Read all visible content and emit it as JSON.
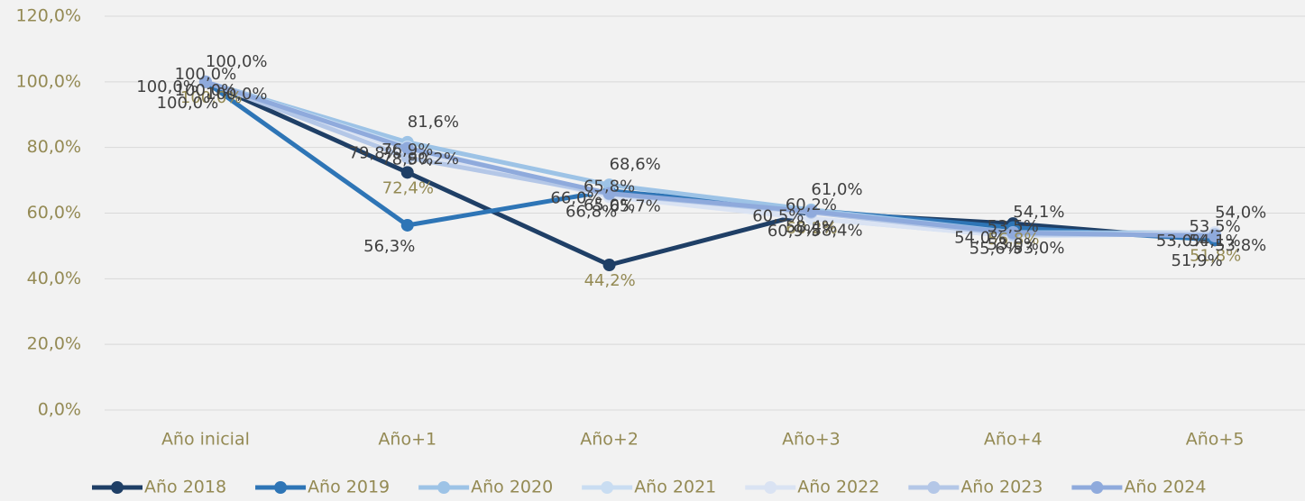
{
  "chart_data": {
    "type": "line",
    "categories": [
      "Año inicial",
      "Año+1",
      "Año+2",
      "Año+3",
      "Año+4",
      "Año+5"
    ],
    "series": [
      {
        "name": "Año 2018",
        "color": "#1f3f66",
        "values": [
          100,
          72.4,
          44.2,
          60.2,
          56.8,
          51.8
        ],
        "value_labels": [
          "100,0%",
          "72,4%",
          "44,2%",
          "60,2%",
          "56,8%",
          "51,8%"
        ]
      },
      {
        "name": "Año 2019",
        "color": "#2e75b6",
        "values": [
          100,
          56.3,
          66.8,
          60.9,
          55.6,
          51.9
        ],
        "value_labels": [
          "100,0%",
          "56,3%",
          "66,8%",
          "60,9%",
          "55,6%",
          "51,9%"
        ]
      },
      {
        "name": "Año 2020",
        "color": "#9dc3e6",
        "values": [
          100,
          81.6,
          68.6,
          61.0,
          54.1,
          54.0
        ],
        "value_labels": [
          "100,0%",
          "81,6%",
          "68,6%",
          "61,0%",
          "54,1%",
          "54,0%"
        ]
      },
      {
        "name": "Año 2021",
        "color": "#c9ddf2",
        "values": [
          100,
          80.2,
          65.7,
          58.4,
          53.0,
          53.8
        ],
        "value_labels": [
          "100,0%",
          "80,2%",
          "65,7%",
          "58,4%",
          "53,0%",
          "53,8%"
        ]
      },
      {
        "name": "Año 2022",
        "color": "#dae3f3",
        "values": [
          100,
          78.9,
          65.0,
          58.4,
          53.0,
          54.1
        ],
        "value_labels": [
          "100,0%",
          "78,9%",
          "65,0%",
          "58,4%",
          "53,0%",
          "54,1%"
        ]
      },
      {
        "name": "Año 2023",
        "color": "#b4c7e7",
        "values": [
          100,
          76.9,
          65.8,
          60.2,
          53.5,
          53.5
        ],
        "value_labels": [
          "100,0%",
          "76,9%",
          "65,8%",
          "60,2%",
          "53,5%",
          "53,5%"
        ]
      },
      {
        "name": "Año 2024",
        "color": "#8faadc",
        "values": [
          100,
          79.8,
          66.0,
          60.5,
          54.0,
          53.0
        ],
        "value_labels": [
          "100,0%",
          "79,8%",
          "66,0%",
          "60,5%",
          "54,0%",
          "53,0%"
        ]
      }
    ],
    "ylim": [
      0,
      120
    ],
    "yticks": [
      {
        "value": 0,
        "label": "0,0%"
      },
      {
        "value": 20,
        "label": "20,0%"
      },
      {
        "value": 40,
        "label": "40,0%"
      },
      {
        "value": 60,
        "label": "60,0%"
      },
      {
        "value": 80,
        "label": "80,0%"
      },
      {
        "value": 100,
        "label": "100,0%"
      },
      {
        "value": 120,
        "label": "120,0%"
      }
    ],
    "grid": true,
    "legend": "bottom"
  }
}
